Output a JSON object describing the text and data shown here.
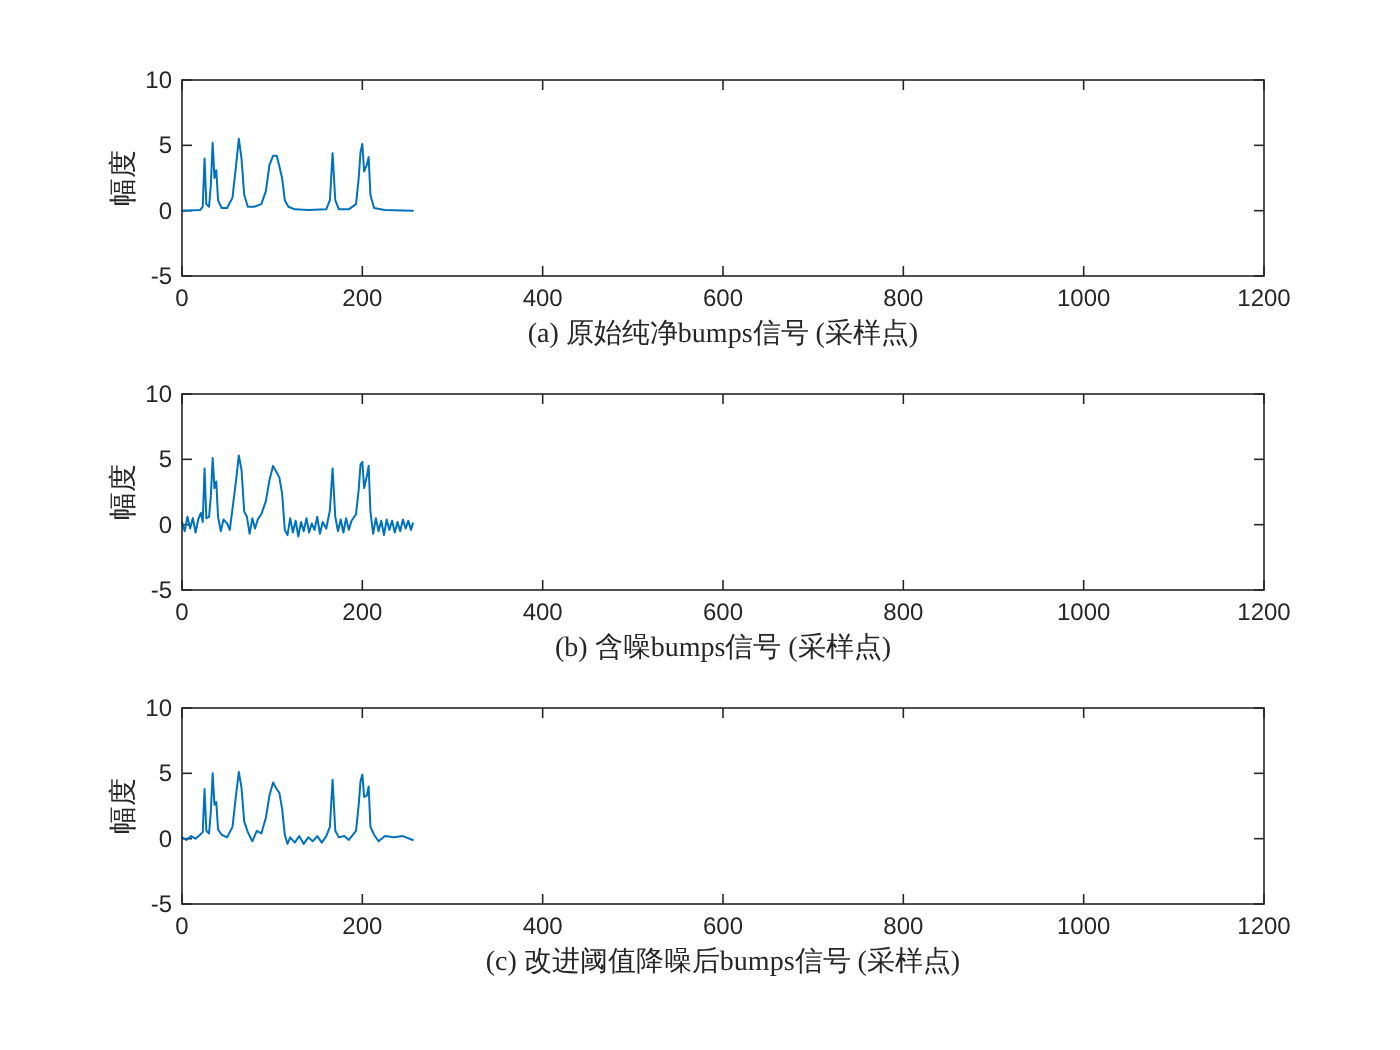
{
  "chart_data": [
    {
      "type": "line",
      "xlabel": "(a) 原始纯净bumps信号 (采样点)",
      "ylabel": "幅度",
      "color": "#0072bd",
      "xlim": [
        0,
        1200
      ],
      "ylim": [
        -5,
        10
      ],
      "xticks": [
        0,
        200,
        400,
        600,
        800,
        1000,
        1200
      ],
      "yticks": [
        -5,
        0,
        5,
        10
      ],
      "x": [
        0,
        20,
        23,
        25,
        27,
        30,
        32,
        34,
        36,
        38,
        40,
        44,
        50,
        56,
        60,
        63,
        66,
        69,
        73,
        80,
        88,
        93,
        97,
        101,
        105,
        108,
        111,
        114,
        118,
        125,
        140,
        160,
        164,
        167,
        170,
        174,
        185,
        193,
        196,
        198,
        200,
        202,
        205,
        207,
        209,
        213,
        225,
        256
      ],
      "values": [
        0,
        0.05,
        0.3,
        4.0,
        0.5,
        0.3,
        2,
        5.2,
        2.5,
        3.1,
        0.8,
        0.2,
        0.2,
        1,
        3.5,
        5.5,
        4,
        1.2,
        0.3,
        0.3,
        0.5,
        1.5,
        3.5,
        4.2,
        4.2,
        3.4,
        2.5,
        0.8,
        0.3,
        0.1,
        0.05,
        0.1,
        0.8,
        4.4,
        0.8,
        0.1,
        0.1,
        0.5,
        2.5,
        4.5,
        5.1,
        3,
        3.5,
        4.1,
        1.2,
        0.2,
        0.05,
        0
      ]
    },
    {
      "type": "line",
      "xlabel": "(b) 含噪bumps信号 (采样点)",
      "ylabel": "幅度",
      "color": "#0072bd",
      "xlim": [
        0,
        1200
      ],
      "ylim": [
        -5,
        10
      ],
      "xticks": [
        0,
        200,
        400,
        600,
        800,
        1000,
        1200
      ],
      "yticks": [
        -5,
        0,
        5,
        10
      ],
      "x": [
        0,
        3,
        6,
        9,
        12,
        15,
        18,
        21,
        23,
        25,
        27,
        30,
        32,
        34,
        36,
        38,
        40,
        43,
        46,
        50,
        53,
        56,
        60,
        63,
        66,
        69,
        72,
        75,
        78,
        81,
        84,
        88,
        93,
        97,
        101,
        105,
        108,
        111,
        114,
        117,
        120,
        123,
        126,
        129,
        132,
        135,
        138,
        141,
        144,
        147,
        150,
        153,
        156,
        160,
        164,
        167,
        170,
        173,
        176,
        179,
        182,
        185,
        188,
        193,
        196,
        198,
        200,
        202,
        205,
        207,
        209,
        212,
        215,
        218,
        221,
        224,
        227,
        230,
        233,
        236,
        239,
        242,
        245,
        248,
        251,
        254,
        256
      ],
      "values": [
        0.2,
        -0.5,
        0.6,
        -0.3,
        0.5,
        -0.6,
        0.4,
        0.9,
        0.2,
        4.3,
        0.5,
        0.6,
        2.2,
        5.1,
        2.8,
        3.3,
        0.6,
        -0.5,
        0.4,
        0.1,
        -0.4,
        1.2,
        3.4,
        5.3,
        4.2,
        1.0,
        0.6,
        -0.7,
        0.5,
        -0.3,
        0.4,
        0.8,
        1.8,
        3.4,
        4.5,
        4.0,
        3.6,
        2.4,
        -0.4,
        -0.8,
        0.5,
        -0.6,
        0.3,
        -0.9,
        0.2,
        -0.5,
        0.5,
        -0.6,
        0.1,
        -0.4,
        0.6,
        -0.7,
        0.2,
        -0.3,
        1.1,
        4.3,
        0.6,
        -0.5,
        0.4,
        -0.6,
        0.5,
        -0.4,
        0.3,
        0.8,
        2.7,
        4.6,
        4.8,
        2.8,
        3.7,
        4.5,
        1.0,
        -0.7,
        0.5,
        -0.5,
        0.3,
        -0.8,
        0.4,
        -0.4,
        0.3,
        -0.6,
        0.2,
        -0.5,
        0.4,
        -0.3,
        0.3,
        -0.4,
        0.1
      ]
    },
    {
      "type": "line",
      "xlabel": "(c) 改进阈值降噪后bumps信号 (采样点)",
      "ylabel": "幅度",
      "color": "#0072bd",
      "xlim": [
        0,
        1200
      ],
      "ylim": [
        -5,
        10
      ],
      "xticks": [
        0,
        200,
        400,
        600,
        800,
        1000,
        1200
      ],
      "yticks": [
        -5,
        0,
        5,
        10
      ],
      "x": [
        0,
        5,
        10,
        15,
        20,
        23,
        25,
        27,
        30,
        32,
        34,
        36,
        38,
        40,
        44,
        50,
        56,
        60,
        63,
        66,
        69,
        73,
        78,
        83,
        88,
        93,
        97,
        101,
        105,
        108,
        111,
        114,
        117,
        120,
        125,
        130,
        135,
        140,
        145,
        150,
        155,
        160,
        164,
        167,
        170,
        174,
        180,
        185,
        193,
        196,
        198,
        200,
        202,
        205,
        207,
        209,
        213,
        218,
        225,
        235,
        245,
        256
      ],
      "values": [
        0.1,
        -0.1,
        0.2,
        0,
        0.3,
        0.5,
        3.8,
        0.6,
        0.4,
        2.1,
        5.0,
        2.6,
        2.8,
        0.7,
        0.3,
        0.1,
        0.9,
        3.4,
        5.1,
        3.9,
        1.3,
        0.5,
        -0.2,
        0.6,
        0.4,
        1.6,
        3.3,
        4.3,
        3.8,
        3.5,
        2.3,
        0.3,
        -0.4,
        0.1,
        -0.3,
        0.2,
        -0.4,
        0.1,
        -0.2,
        0.2,
        -0.3,
        0.2,
        0.9,
        4.5,
        0.6,
        0.1,
        0.2,
        -0.1,
        0.6,
        2.6,
        4.4,
        4.9,
        3.2,
        3.3,
        4.0,
        0.9,
        0.3,
        -0.2,
        0.2,
        0.1,
        0.2,
        -0.1
      ]
    }
  ]
}
